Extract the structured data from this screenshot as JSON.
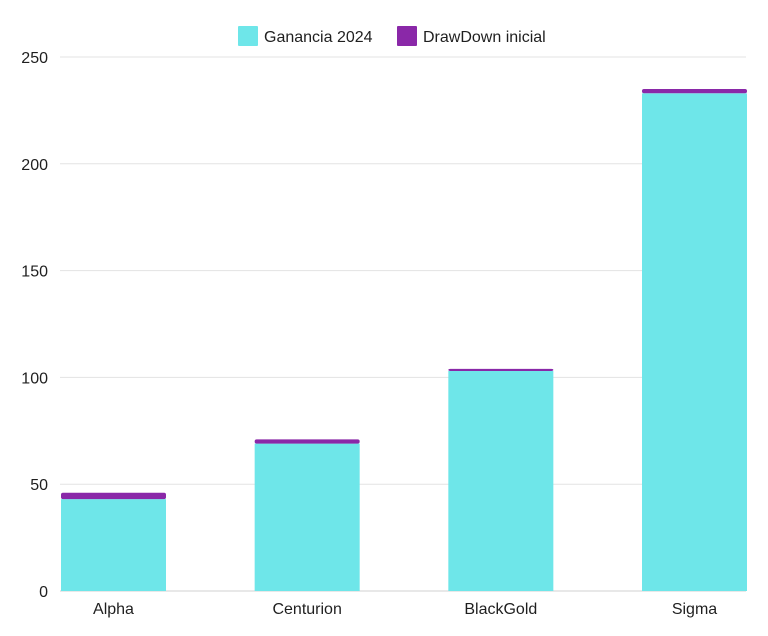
{
  "chart_data": {
    "type": "bar",
    "stacked": true,
    "categories": [
      "Alpha",
      "Centurion",
      "BlackGold",
      "Sigma"
    ],
    "series": [
      {
        "name": "Ganancia 2024",
        "values": [
          43,
          69,
          103,
          233
        ],
        "color": "#6ee6e9"
      },
      {
        "name": "DrawDown inicial",
        "values": [
          3,
          2,
          1,
          2
        ],
        "color": "#8a28a8"
      }
    ],
    "yticks": [
      0,
      50,
      100,
      150,
      200,
      250
    ],
    "ylim": [
      0,
      250
    ],
    "grid": true,
    "legend_position": "top-center",
    "title": "",
    "xlabel": "",
    "ylabel": ""
  }
}
